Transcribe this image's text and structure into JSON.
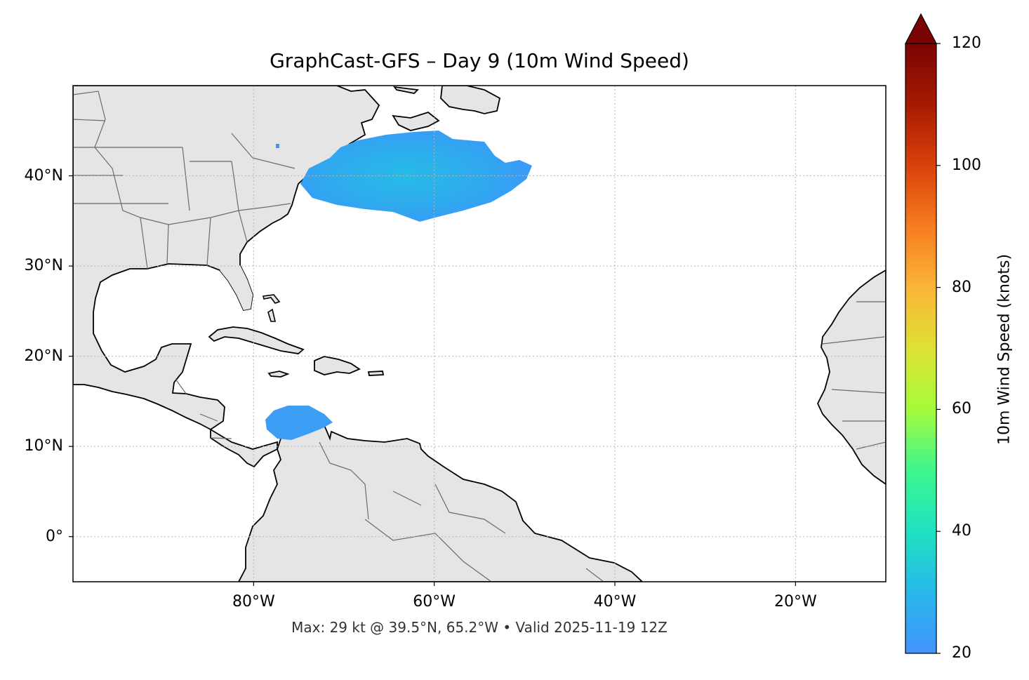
{
  "title": "GraphCast-GFS – Day 9 (10m Wind Speed)",
  "footer": "Max: 29 kt @ 39.5°N, 65.2°W • Valid 2025-11-19 12Z",
  "map": {
    "lon_range": [
      -100,
      -10
    ],
    "lat_range": [
      -5,
      50
    ],
    "gridlines": true,
    "land_color": "#e5e5e5",
    "ocean_color": "#ffffff",
    "coastline_color": "#000000",
    "border_color": "#6b6b6b",
    "lat_ticks": [
      {
        "value": 40,
        "label": "40°N"
      },
      {
        "value": 30,
        "label": "30°N"
      },
      {
        "value": 20,
        "label": "20°N"
      },
      {
        "value": 10,
        "label": "10°N"
      },
      {
        "value": 0,
        "label": "0°"
      }
    ],
    "lon_ticks": [
      {
        "value": -80,
        "label": "80°W"
      },
      {
        "value": -60,
        "label": "60°W"
      },
      {
        "value": -40,
        "label": "40°W"
      },
      {
        "value": -20,
        "label": "20°W"
      }
    ],
    "wind_regions": [
      {
        "name": "western-atlantic-wind-area",
        "approx_center_lat": 39.5,
        "approx_center_lon": -65.2,
        "approx_speed_kt": 26
      },
      {
        "name": "caribbean-wind-area",
        "approx_center_lat": 13.0,
        "approx_center_lon": -75.0,
        "approx_speed_kt": 23
      }
    ],
    "max_marker": {
      "value_kt": 29,
      "lat": 39.5,
      "lon": -65.2
    }
  },
  "colorbar": {
    "label": "10m Wind Speed (knots)",
    "min": 20,
    "max": 120,
    "extend": "max",
    "ticks": [
      {
        "value": 120,
        "label": "120"
      },
      {
        "value": 100,
        "label": "100"
      },
      {
        "value": 80,
        "label": "80"
      },
      {
        "value": 60,
        "label": "60"
      },
      {
        "value": 40,
        "label": "40"
      },
      {
        "value": 20,
        "label": "20"
      }
    ],
    "colormap": "turbo"
  }
}
